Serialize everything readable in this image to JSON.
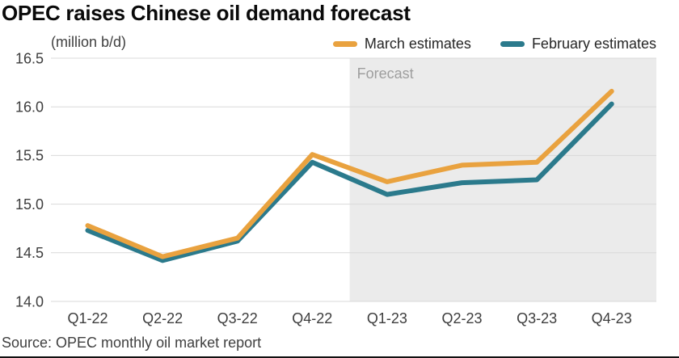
{
  "title": "OPEC raises Chinese oil demand forecast",
  "unit_label": "(million b/d)",
  "legend": {
    "items": [
      {
        "label": "March estimates",
        "color": "#E9A23F"
      },
      {
        "label": "February estimates",
        "color": "#2B7A8C"
      }
    ]
  },
  "source": "Source: OPEC monthly oil market report",
  "colors": {
    "march_line": "#E9A23F",
    "february_line": "#2B7A8C",
    "forecast_band": "#EBEBEB",
    "gridline": "#D9D9D9",
    "tick_text": "#3D3D3D",
    "forecast_label_text": "#9E9E9E"
  },
  "chart_data": {
    "type": "line",
    "title": "OPEC raises Chinese oil demand forecast",
    "ylabel": "(million b/d)",
    "categories": [
      "Q1-22",
      "Q2-22",
      "Q3-22",
      "Q4-22",
      "Q1-23",
      "Q2-23",
      "Q3-23",
      "Q4-23"
    ],
    "series": [
      {
        "name": "March estimates",
        "color": "#E9A23F",
        "values": [
          14.78,
          14.46,
          14.65,
          15.51,
          15.23,
          15.4,
          15.43,
          16.16
        ]
      },
      {
        "name": "February estimates",
        "color": "#2B7A8C",
        "values": [
          14.73,
          14.42,
          14.62,
          15.43,
          15.1,
          15.22,
          15.25,
          16.03
        ]
      }
    ],
    "ylim": [
      14.0,
      16.5
    ],
    "yticks": [
      14.0,
      14.5,
      15.0,
      15.5,
      16.0,
      16.5
    ],
    "grid": true,
    "legend_position": "top",
    "annotation": {
      "label": "Forecast",
      "band_start_after_index": 3,
      "note": "shaded band from midway between Q4-22 and Q1-23 to right edge"
    }
  }
}
